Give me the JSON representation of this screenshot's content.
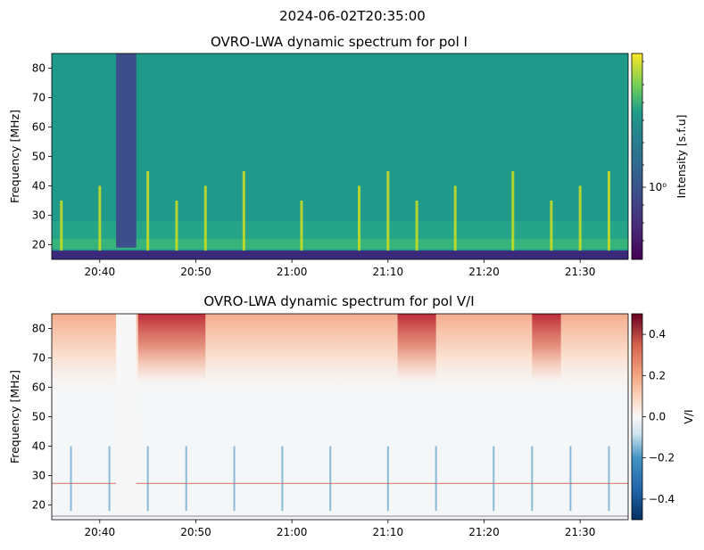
{
  "suptitle": "2024-06-02T20:35:00",
  "chart_data": [
    {
      "type": "heatmap",
      "title": "OVRO-LWA dynamic spectrum for pol I",
      "xlabel": "",
      "ylabel": "Frequency [MHz]",
      "x_range_minutes": [
        0,
        60
      ],
      "x_start_time": "20:35",
      "x_ticks": [
        {
          "minute": 5,
          "label": "20:40"
        },
        {
          "minute": 15,
          "label": "20:50"
        },
        {
          "minute": 25,
          "label": "21:00"
        },
        {
          "minute": 35,
          "label": "21:10"
        },
        {
          "minute": 45,
          "label": "21:20"
        },
        {
          "minute": 55,
          "label": "21:30"
        }
      ],
      "ylim": [
        15,
        85
      ],
      "y_ticks": [
        20,
        30,
        40,
        50,
        60,
        70,
        80
      ],
      "colormap": "viridis",
      "colorbar": {
        "label": "Intensity [s.f.u]",
        "scale": "log",
        "tick_label": "10⁰",
        "tick_value": 1.0
      },
      "features": {
        "data_gap_minutes": [
          6.7,
          8.8
        ],
        "strong_band_MHz": [
          18,
          22
        ],
        "bright_bursts_minutes": [
          1,
          5,
          10,
          13,
          16,
          20,
          26,
          32,
          35,
          38,
          42,
          48,
          52,
          55,
          58
        ]
      }
    },
    {
      "type": "heatmap",
      "title": "OVRO-LWA dynamic spectrum for pol V/I",
      "xlabel": "",
      "ylabel": "Frequency [MHz]",
      "x_range_minutes": [
        0,
        60
      ],
      "x_start_time": "20:35",
      "x_ticks": [
        {
          "minute": 5,
          "label": "20:40"
        },
        {
          "minute": 15,
          "label": "20:50"
        },
        {
          "minute": 25,
          "label": "21:00"
        },
        {
          "minute": 35,
          "label": "21:10"
        },
        {
          "minute": 45,
          "label": "21:20"
        },
        {
          "minute": 55,
          "label": "21:30"
        }
      ],
      "ylim": [
        15,
        85
      ],
      "y_ticks": [
        20,
        30,
        40,
        50,
        60,
        70,
        80
      ],
      "colormap": "RdBu_r",
      "colorbar": {
        "label": "V/I",
        "range": [
          -0.5,
          0.5
        ],
        "ticks": [
          {
            "value": 0.4,
            "label": "0.4"
          },
          {
            "value": 0.2,
            "label": "0.2"
          },
          {
            "value": 0.0,
            "label": "0.0"
          },
          {
            "value": -0.2,
            "label": "−0.2"
          },
          {
            "value": -0.4,
            "label": "−0.4"
          }
        ]
      },
      "features": {
        "data_gap_minutes": [
          6.7,
          8.8
        ],
        "positive_polarization_above_MHz": 55,
        "strong_positive_regions_minutes": [
          [
            9,
            16
          ],
          [
            36,
            40
          ],
          [
            50,
            53
          ]
        ]
      }
    }
  ]
}
